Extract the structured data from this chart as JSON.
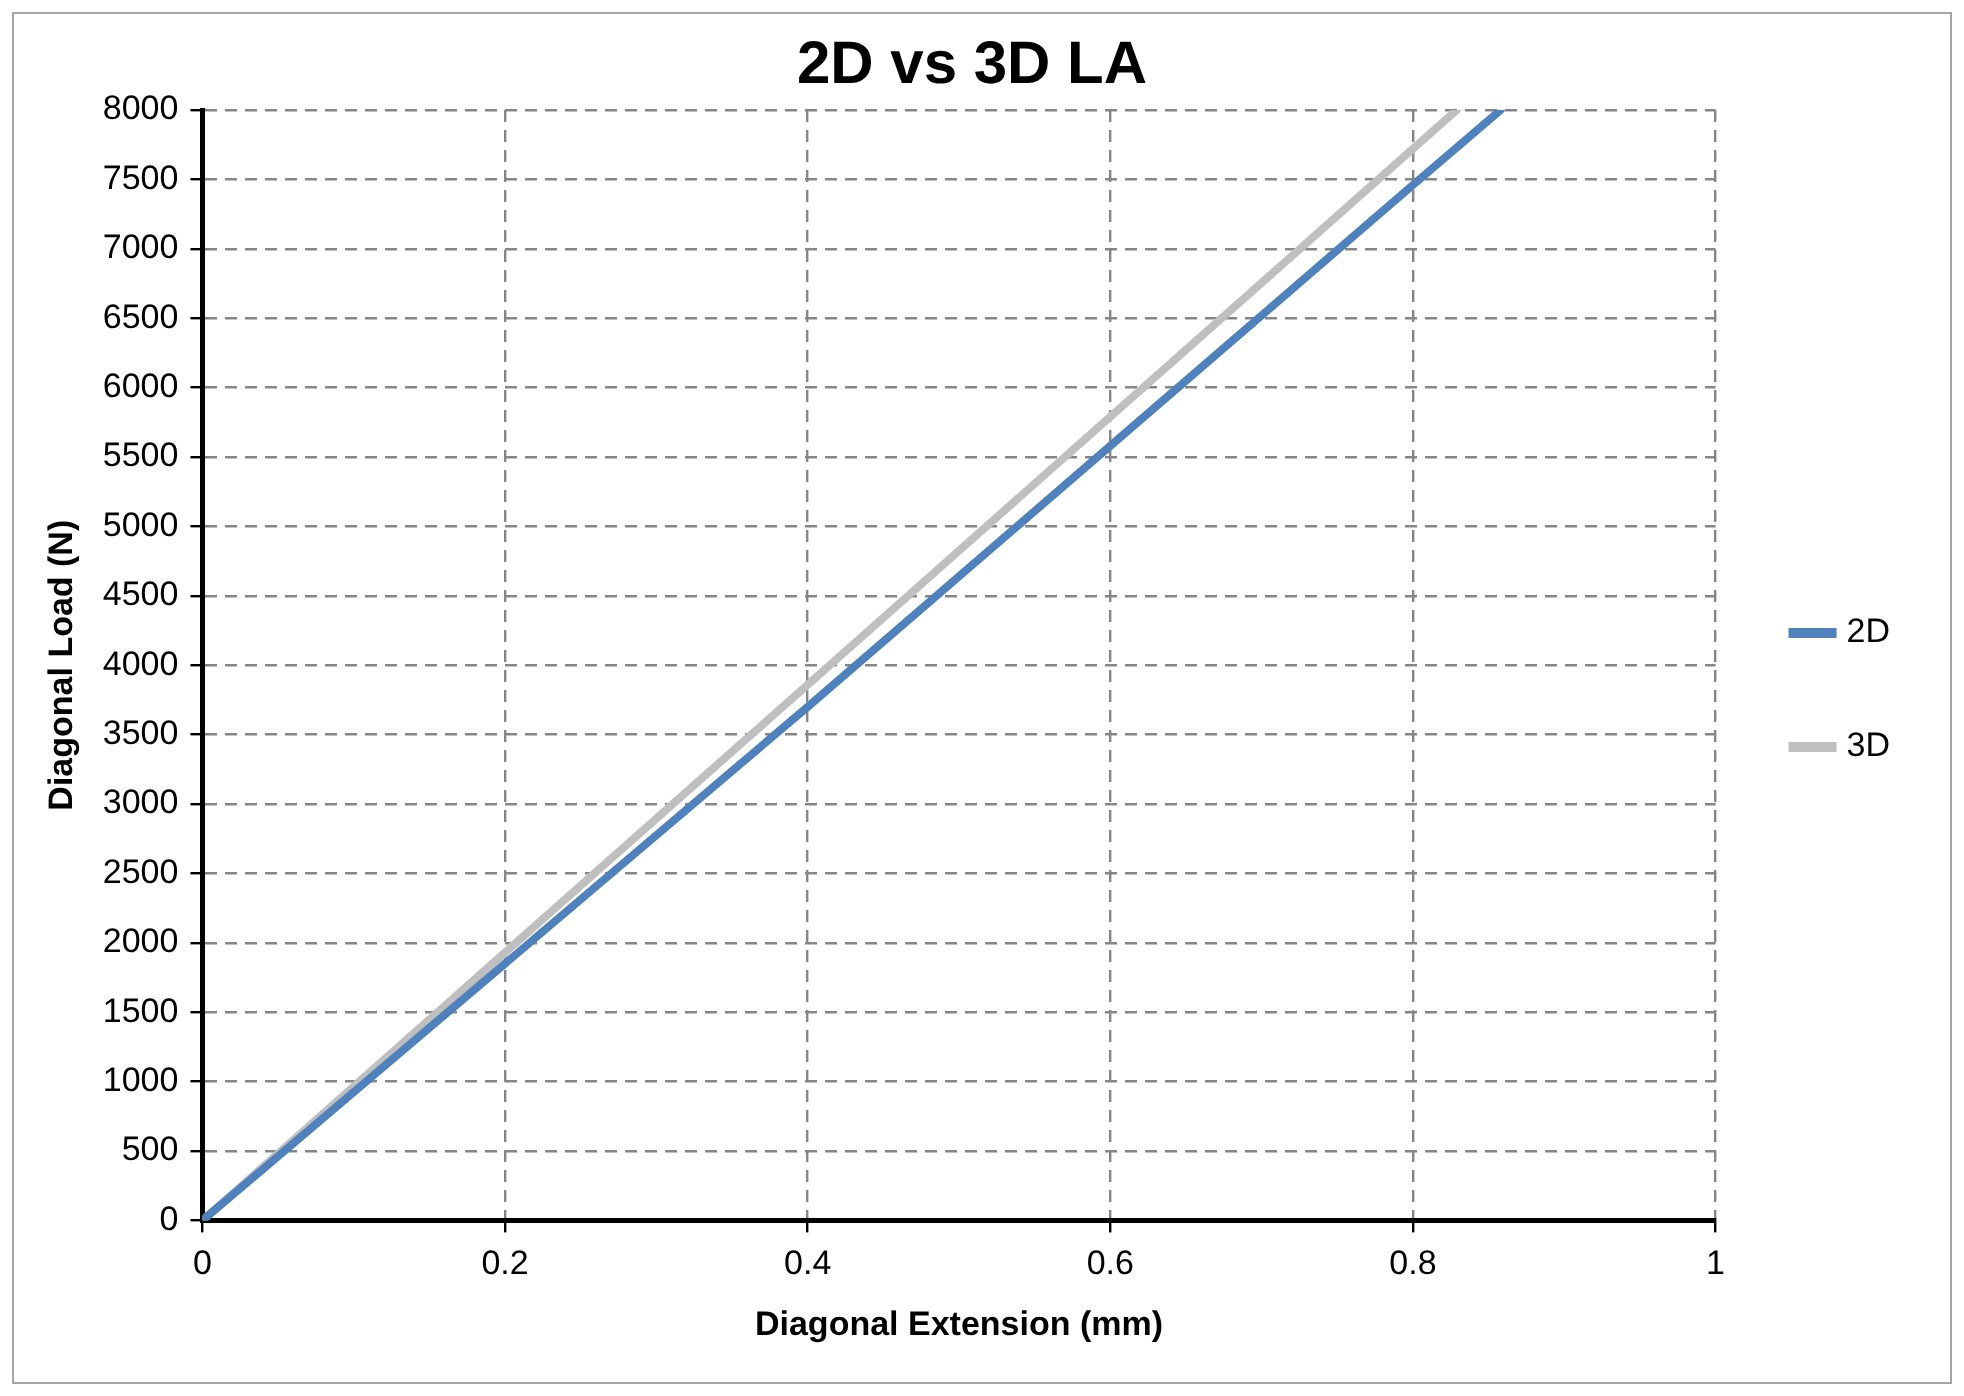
{
  "chart_data": {
    "type": "line",
    "title": "2D vs 3D LA",
    "xlabel": "Diagonal Extension (mm)",
    "ylabel": "Diagonal Load (N)",
    "series": [
      {
        "name": "2D",
        "color": "#4f81bd",
        "x": [
          0,
          0.2,
          0.4,
          0.6,
          0.8,
          0.858
        ],
        "values": [
          0,
          1850,
          3700,
          5580,
          7460,
          8000
        ]
      },
      {
        "name": "3D",
        "color": "#bfbfbf",
        "x": [
          0,
          0.2,
          0.4,
          0.6,
          0.8,
          0.829
        ],
        "values": [
          0,
          1930,
          3860,
          5790,
          7720,
          8000
        ]
      }
    ],
    "xlim": [
      0,
      1
    ],
    "xticks": [
      0,
      0.2,
      0.4,
      0.6,
      0.8,
      1
    ],
    "ylim": [
      0,
      8000
    ],
    "yticks": [
      0,
      500,
      1000,
      1500,
      2000,
      2500,
      3000,
      3500,
      4000,
      4500,
      5000,
      5500,
      6000,
      6500,
      7000,
      7500,
      8000
    ],
    "grid": true,
    "legend": "right",
    "marker": "none",
    "line_style": "solid"
  }
}
